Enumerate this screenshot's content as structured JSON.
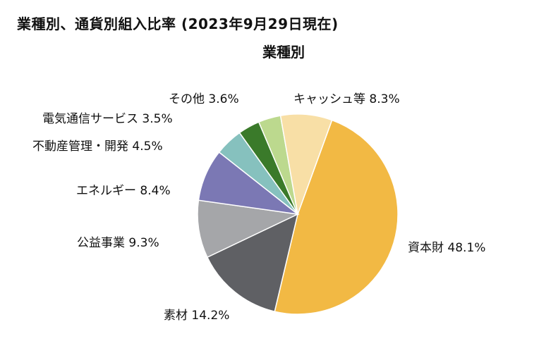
{
  "chart_data": {
    "type": "pie",
    "title": "業種別、通貨別組入比率 (2023年9月29日現在)",
    "subtitle": "業種別",
    "slices": [
      {
        "label": "資本財",
        "value": 48.1,
        "value_label": "48.1%",
        "color": "#F2B944"
      },
      {
        "label": "素材",
        "value": 14.2,
        "value_label": "14.2%",
        "color": "#5F6064"
      },
      {
        "label": "公益事業",
        "value": 9.3,
        "value_label": "9.3%",
        "color": "#A5A6A9"
      },
      {
        "label": "エネルギー",
        "value": 8.4,
        "value_label": "8.4%",
        "color": "#7B78B4"
      },
      {
        "label": "不動産管理・開発",
        "value": 4.5,
        "value_label": "4.5%",
        "color": "#86C1BE"
      },
      {
        "label": "電気通信サービス",
        "value": 3.5,
        "value_label": "3.5%",
        "color": "#3A7A2A"
      },
      {
        "label": "その他",
        "value": 3.6,
        "value_label": "3.6%",
        "color": "#BCD98E"
      },
      {
        "label": "キャッシュ等",
        "value": 8.3,
        "value_label": "8.3%",
        "color": "#F8DFA6"
      }
    ]
  }
}
